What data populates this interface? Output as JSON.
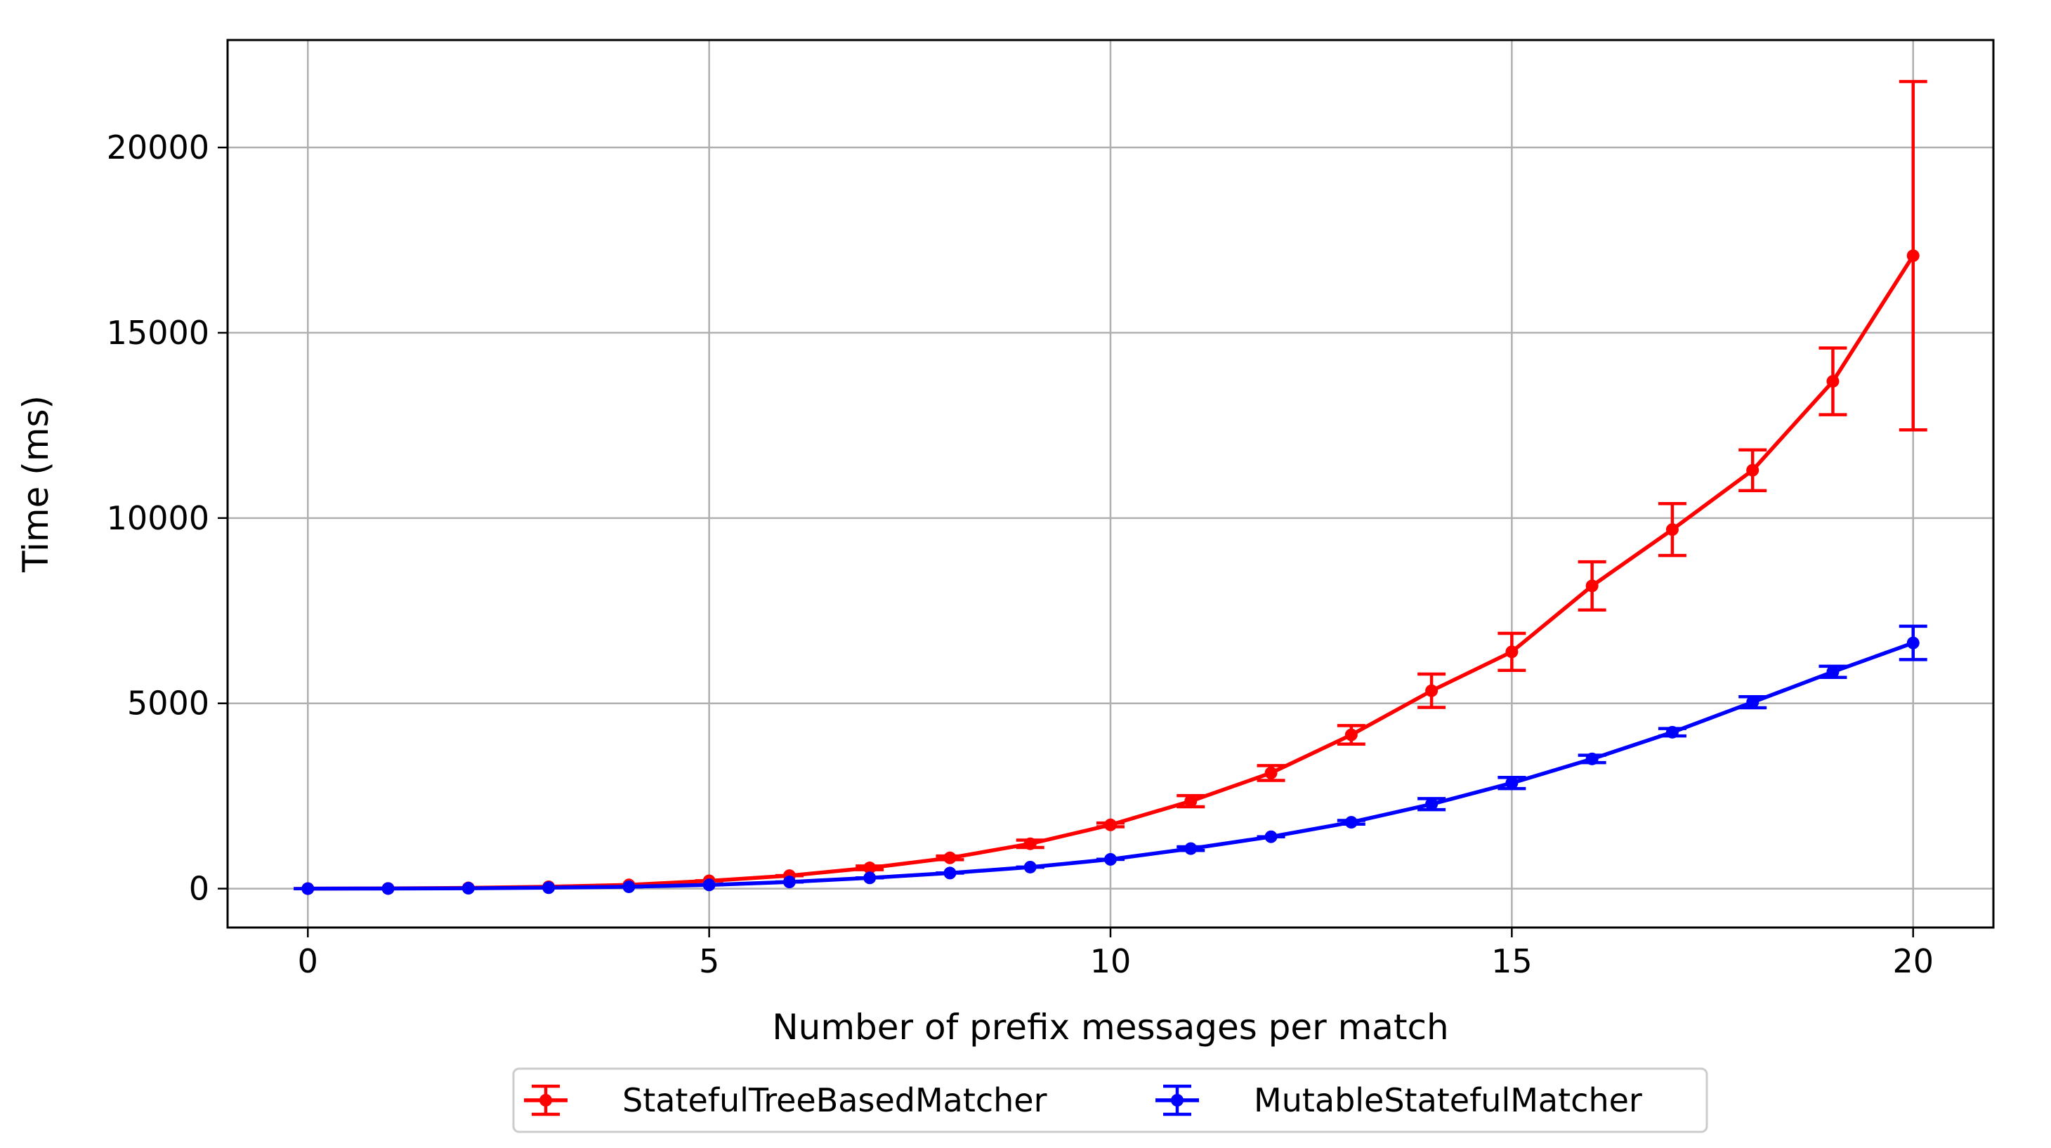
{
  "chart_data": {
    "type": "line",
    "title": "",
    "xlabel": "Number of prefix messages per match",
    "ylabel": "Time (ms)",
    "xlim": [
      -1,
      21
    ],
    "ylim": [
      -1050,
      22900
    ],
    "xticks": [
      0,
      5,
      10,
      15,
      20
    ],
    "yticks": [
      0,
      5000,
      10000,
      15000,
      20000
    ],
    "x_tick_labels": [
      "0",
      "5",
      "10",
      "15",
      "20"
    ],
    "y_tick_labels": [
      "0",
      "5000",
      "10000",
      "15000",
      "20000"
    ],
    "grid": true,
    "legend_position": "bottom-center",
    "x": [
      0,
      1,
      2,
      3,
      4,
      5,
      6,
      7,
      8,
      9,
      10,
      11,
      12,
      13,
      14,
      15,
      16,
      17,
      18,
      19,
      20
    ],
    "series": [
      {
        "name": "StatefulTreeBasedMatcher",
        "color": "#ff0000",
        "values": [
          0,
          5,
          20,
          50,
          100,
          210,
          350,
          560,
          830,
          1210,
          1720,
          2360,
          3120,
          4150,
          5340,
          6390,
          8170,
          9690,
          11290,
          13690,
          17080
        ],
        "errors": [
          0,
          0,
          0,
          0,
          0,
          0,
          0,
          50,
          50,
          100,
          50,
          150,
          200,
          250,
          450,
          500,
          650,
          700,
          550,
          900,
          4700
        ]
      },
      {
        "name": "MutableStatefulMatcher",
        "color": "#0000ff",
        "values": [
          0,
          2,
          10,
          25,
          50,
          100,
          180,
          290,
          420,
          580,
          790,
          1080,
          1400,
          1790,
          2280,
          2850,
          3500,
          4220,
          5030,
          5850,
          6630
        ],
        "errors": [
          0,
          0,
          0,
          0,
          0,
          0,
          0,
          0,
          0,
          0,
          0,
          50,
          0,
          50,
          150,
          150,
          100,
          100,
          150,
          150,
          450
        ]
      }
    ]
  }
}
